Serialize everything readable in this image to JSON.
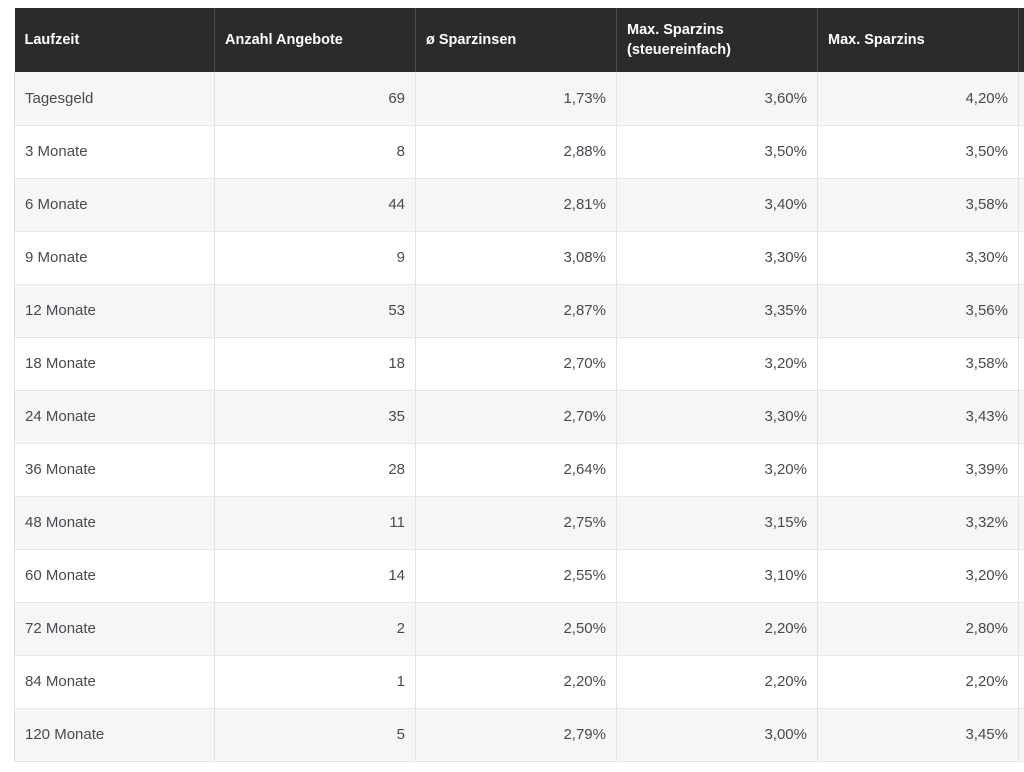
{
  "table": {
    "headers": [
      "Laufzeit",
      "Anzahl Angebote",
      "ø Sparzinsen",
      "Max. Sparzins\n(steuereinfach)",
      "Max. Sparzins"
    ],
    "rows": [
      [
        "Tagesgeld",
        "69",
        "1,73%",
        "3,60%",
        "4,20%"
      ],
      [
        "3 Monate",
        "8",
        "2,88%",
        "3,50%",
        "3,50%"
      ],
      [
        "6 Monate",
        "44",
        "2,81%",
        "3,40%",
        "3,58%"
      ],
      [
        "9 Monate",
        "9",
        "3,08%",
        "3,30%",
        "3,30%"
      ],
      [
        "12 Monate",
        "53",
        "2,87%",
        "3,35%",
        "3,56%"
      ],
      [
        "18 Monate",
        "18",
        "2,70%",
        "3,20%",
        "3,58%"
      ],
      [
        "24 Monate",
        "35",
        "2,70%",
        "3,30%",
        "3,43%"
      ],
      [
        "36 Monate",
        "28",
        "2,64%",
        "3,20%",
        "3,39%"
      ],
      [
        "48 Monate",
        "11",
        "2,75%",
        "3,15%",
        "3,32%"
      ],
      [
        "60 Monate",
        "14",
        "2,55%",
        "3,10%",
        "3,20%"
      ],
      [
        "72 Monate",
        "2",
        "2,50%",
        "2,20%",
        "2,80%"
      ],
      [
        "84 Monate",
        "1",
        "2,20%",
        "2,20%",
        "2,20%"
      ],
      [
        "120 Monate",
        "5",
        "2,79%",
        "3,00%",
        "3,45%"
      ]
    ]
  },
  "colors": {
    "header_bg": "#2b2b2b",
    "header_text": "#ffffff",
    "row_odd": "#f6f6f6",
    "row_even": "#ffffff",
    "cell_text": "#444b52"
  }
}
